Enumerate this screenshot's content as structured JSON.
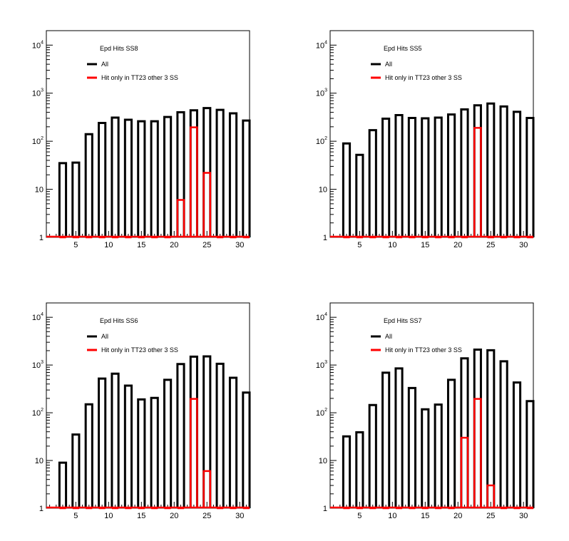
{
  "chart_data": [
    {
      "type": "bar",
      "title": "Epd Hits SS8",
      "xlim": [
        0.5,
        31.5
      ],
      "ylim": [
        1,
        20000
      ],
      "yscale": "log",
      "grid": false,
      "legend_position": "top-left",
      "x_ticks": [
        "5",
        "10",
        "15",
        "20",
        "25",
        "30"
      ],
      "y_ticks": [
        {
          "base": "1",
          "exp": ""
        },
        {
          "base": "10",
          "exp": ""
        },
        {
          "base": "10",
          "exp": "2"
        },
        {
          "base": "10",
          "exp": "3"
        },
        {
          "base": "10",
          "exp": "4"
        }
      ],
      "x": [
        3,
        5,
        7,
        9,
        11,
        13,
        15,
        17,
        19,
        21,
        23,
        25,
        27,
        29,
        31
      ],
      "series": [
        {
          "name": "All",
          "color": "#000000",
          "values": [
            35,
            36,
            140,
            240,
            310,
            280,
            260,
            260,
            320,
            400,
            440,
            490,
            450,
            380,
            270
          ]
        },
        {
          "name": "Hit only in TT23 other 3 SS",
          "color": "#ff0000",
          "values": [
            1,
            1,
            1,
            1,
            1,
            1,
            1,
            1,
            1,
            6,
            195,
            22,
            1,
            1,
            1
          ]
        }
      ]
    },
    {
      "type": "bar",
      "title": "Epd Hits SS5",
      "xlim": [
        0.5,
        31.5
      ],
      "ylim": [
        1,
        20000
      ],
      "yscale": "log",
      "grid": false,
      "legend_position": "top-left",
      "x_ticks": [
        "5",
        "10",
        "15",
        "20",
        "25",
        "30"
      ],
      "y_ticks": [
        {
          "base": "1",
          "exp": ""
        },
        {
          "base": "10",
          "exp": ""
        },
        {
          "base": "10",
          "exp": "2"
        },
        {
          "base": "10",
          "exp": "3"
        },
        {
          "base": "10",
          "exp": "4"
        }
      ],
      "x": [
        3,
        5,
        7,
        9,
        11,
        13,
        15,
        17,
        19,
        21,
        23,
        25,
        27,
        29,
        31
      ],
      "series": [
        {
          "name": "All",
          "color": "#000000",
          "values": [
            90,
            52,
            170,
            295,
            350,
            305,
            300,
            310,
            360,
            460,
            560,
            610,
            530,
            410,
            305
          ]
        },
        {
          "name": "Hit only in TT23 other 3 SS",
          "color": "#ff0000",
          "values": [
            1,
            1,
            1,
            1,
            1,
            1,
            1,
            1,
            1,
            1,
            190,
            1,
            1,
            1,
            1
          ]
        }
      ]
    },
    {
      "type": "bar",
      "title": "Epd Hits SS6",
      "xlim": [
        0.5,
        31.5
      ],
      "ylim": [
        1,
        20000
      ],
      "yscale": "log",
      "grid": false,
      "legend_position": "top-left",
      "x_ticks": [
        "5",
        "10",
        "15",
        "20",
        "25",
        "30"
      ],
      "y_ticks": [
        {
          "base": "1",
          "exp": ""
        },
        {
          "base": "10",
          "exp": ""
        },
        {
          "base": "10",
          "exp": "2"
        },
        {
          "base": "10",
          "exp": "3"
        },
        {
          "base": "10",
          "exp": "4"
        }
      ],
      "x": [
        3,
        5,
        7,
        9,
        11,
        13,
        15,
        17,
        19,
        21,
        23,
        25,
        27,
        29,
        31
      ],
      "series": [
        {
          "name": "All",
          "color": "#000000",
          "values": [
            9,
            35,
            150,
            520,
            660,
            370,
            190,
            205,
            490,
            1050,
            1500,
            1520,
            1060,
            540,
            265
          ]
        },
        {
          "name": "Hit only in TT23 other 3 SS",
          "color": "#ff0000",
          "values": [
            1,
            1,
            1,
            1,
            1,
            1,
            1,
            1,
            1,
            1,
            195,
            6,
            1,
            1,
            1
          ]
        }
      ]
    },
    {
      "type": "bar",
      "title": "Epd Hits SS7",
      "xlim": [
        0.5,
        31.5
      ],
      "ylim": [
        1,
        20000
      ],
      "yscale": "log",
      "grid": false,
      "legend_position": "top-left",
      "x_ticks": [
        "5",
        "10",
        "15",
        "20",
        "25",
        "30"
      ],
      "y_ticks": [
        {
          "base": "1",
          "exp": ""
        },
        {
          "base": "10",
          "exp": ""
        },
        {
          "base": "10",
          "exp": "2"
        },
        {
          "base": "10",
          "exp": "3"
        },
        {
          "base": "10",
          "exp": "4"
        }
      ],
      "x": [
        3,
        5,
        7,
        9,
        11,
        13,
        15,
        17,
        19,
        21,
        23,
        25,
        27,
        29,
        31
      ],
      "series": [
        {
          "name": "All",
          "color": "#000000",
          "values": [
            32,
            39,
            145,
            690,
            850,
            330,
            118,
            148,
            490,
            1380,
            2100,
            2040,
            1200,
            430,
            175
          ]
        },
        {
          "name": "Hit only in TT23 other 3 SS",
          "color": "#ff0000",
          "values": [
            1,
            1,
            1,
            1,
            1,
            1,
            1,
            1,
            1,
            30,
            195,
            3,
            1,
            1,
            1
          ]
        }
      ]
    }
  ]
}
